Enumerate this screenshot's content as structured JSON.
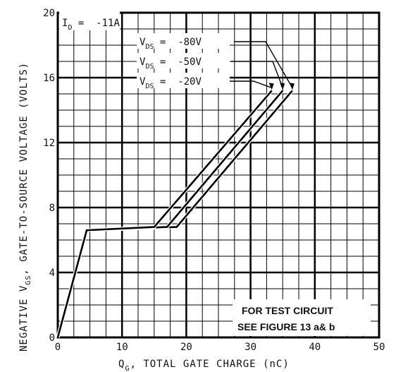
{
  "chart_data": {
    "type": "line",
    "title": "",
    "xlabel": "Q",
    "xlabel_sub": "G",
    "xlabel_rest": ", TOTAL GATE CHARGE (nC)",
    "ylabel": "NEGATIVE V",
    "ylabel_sub": "GS",
    "ylabel_rest": ", GATE-TO-SOURCE VOLTAGE (VOLTS)",
    "xlim": [
      0,
      50
    ],
    "ylim": [
      0,
      20
    ],
    "xticks": [
      0,
      10,
      20,
      30,
      40,
      50
    ],
    "yticks": [
      0,
      4,
      8,
      12,
      16,
      20
    ],
    "grid": true,
    "condition": {
      "prefix": "I",
      "sub": "D",
      "text": " =  -11A"
    },
    "series": [
      {
        "name_prefix": "V",
        "name_sub": "DS",
        "name_value": " =  -80V",
        "x": [
          0,
          4.5,
          18.5,
          36.5
        ],
        "y": [
          0,
          6.6,
          6.8,
          15.2
        ]
      },
      {
        "name_prefix": "V",
        "name_sub": "DS",
        "name_value": " =  -50V",
        "x": [
          0,
          4.5,
          17,
          35
        ],
        "y": [
          0,
          6.6,
          6.8,
          15.2
        ]
      },
      {
        "name_prefix": "V",
        "name_sub": "DS",
        "name_value": " =  -20V",
        "x": [
          0,
          4.5,
          15,
          33.3
        ],
        "y": [
          0,
          6.6,
          6.8,
          15.2
        ]
      }
    ],
    "note": {
      "line1": "FOR TEST CIRCUIT",
      "line2": "SEE FIGURE 13 a& b"
    }
  }
}
